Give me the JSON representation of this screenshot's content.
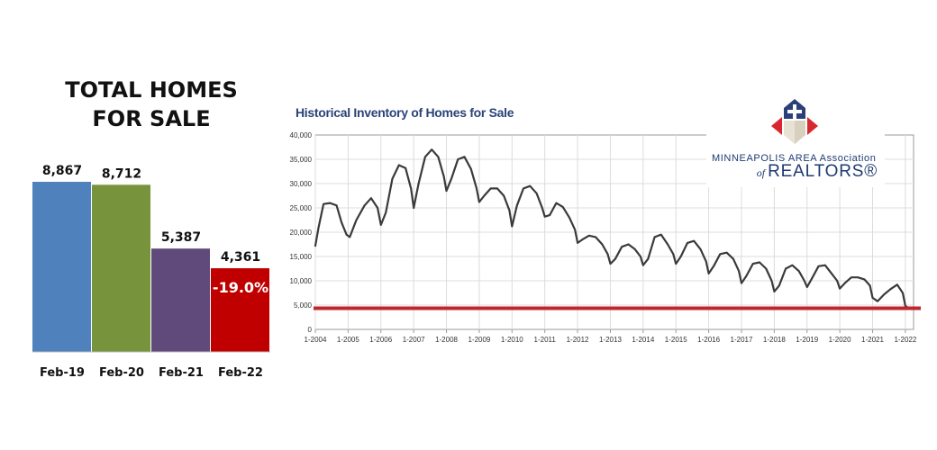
{
  "bar_title_lines": [
    "TOTAL HOMES",
    "FOR SALE"
  ],
  "line_title": "Historical Inventory of Homes for Sale",
  "logo": {
    "line1": "MINNEAPOLIS AREA Association",
    "of": "of",
    "realtors": "REALTORS®"
  },
  "chart_data": [
    {
      "type": "bar",
      "title": "TOTAL HOMES FOR SALE",
      "categories": [
        "Feb-19",
        "Feb-20",
        "Feb-21",
        "Feb-22"
      ],
      "values": [
        8867,
        8712,
        5387,
        4361
      ],
      "value_labels": [
        "8,867",
        "8,712",
        "5,387",
        "4,361"
      ],
      "colors": [
        "#4f81bd",
        "#77933c",
        "#604a7b",
        "#c00000"
      ],
      "annotation": "-19.0%",
      "ylim": [
        0,
        9000
      ]
    },
    {
      "type": "line",
      "title": "Historical Inventory of Homes for Sale",
      "xlabel": "",
      "ylabel": "",
      "ylim": [
        0,
        40000
      ],
      "yticks": [
        0,
        5000,
        10000,
        15000,
        20000,
        25000,
        30000,
        35000,
        40000
      ],
      "ytick_labels": [
        "0",
        "5,000",
        "10,000",
        "15,000",
        "20,000",
        "25,000",
        "30,000",
        "35,000",
        "40,000"
      ],
      "xlim": [
        2004.0,
        2022.25
      ],
      "xticks": [
        2004,
        2005,
        2006,
        2007,
        2008,
        2009,
        2010,
        2011,
        2012,
        2013,
        2014,
        2015,
        2016,
        2017,
        2018,
        2019,
        2020,
        2021,
        2022
      ],
      "xtick_labels": [
        "1-2004",
        "1-2005",
        "1-2006",
        "1-2007",
        "1-2008",
        "1-2009",
        "1-2010",
        "1-2011",
        "1-2012",
        "1-2013",
        "1-2014",
        "1-2015",
        "1-2016",
        "1-2017",
        "1-2018",
        "1-2019",
        "1-2020",
        "1-2021",
        "1-2022"
      ],
      "grid": true,
      "line_color": "#3a3a3a",
      "reference_line": {
        "value": 4361,
        "color": "#c0272d"
      },
      "series": [
        {
          "x": [
            2004.0,
            2004.1,
            2004.25,
            2004.45,
            2004.65,
            2004.8,
            2004.95,
            2005.05,
            2005.25,
            2005.5,
            2005.7,
            2005.9,
            2006.0,
            2006.15,
            2006.35,
            2006.55,
            2006.75,
            2006.92,
            2007.0,
            2007.15,
            2007.35,
            2007.55,
            2007.75,
            2007.92,
            2008.0,
            2008.15,
            2008.35,
            2008.55,
            2008.75,
            2008.92,
            2009.0,
            2009.15,
            2009.35,
            2009.55,
            2009.75,
            2009.92,
            2010.0,
            2010.15,
            2010.35,
            2010.55,
            2010.75,
            2010.92,
            2011.0,
            2011.15,
            2011.35,
            2011.55,
            2011.75,
            2011.92,
            2012.0,
            2012.15,
            2012.35,
            2012.55,
            2012.75,
            2012.92,
            2013.0,
            2013.15,
            2013.35,
            2013.55,
            2013.75,
            2013.92,
            2014.0,
            2014.15,
            2014.35,
            2014.55,
            2014.75,
            2014.92,
            2015.0,
            2015.15,
            2015.35,
            2015.55,
            2015.75,
            2015.92,
            2016.0,
            2016.15,
            2016.35,
            2016.55,
            2016.75,
            2016.92,
            2017.0,
            2017.15,
            2017.35,
            2017.55,
            2017.75,
            2017.92,
            2018.0,
            2018.15,
            2018.35,
            2018.55,
            2018.75,
            2018.92,
            2019.0,
            2019.15,
            2019.35,
            2019.55,
            2019.75,
            2019.92,
            2020.0,
            2020.15,
            2020.35,
            2020.55,
            2020.75,
            2020.92,
            2021.0,
            2021.15,
            2021.35,
            2021.55,
            2021.75,
            2021.92,
            2022.0,
            2022.1
          ],
          "y": [
            17200,
            21000,
            25800,
            26000,
            25500,
            22000,
            19500,
            19000,
            22500,
            25500,
            27000,
            25000,
            21500,
            24000,
            31000,
            33800,
            33200,
            29000,
            25000,
            30000,
            35500,
            37000,
            35500,
            31500,
            28500,
            31000,
            35000,
            35500,
            33000,
            29000,
            26200,
            27500,
            29000,
            29000,
            27500,
            24500,
            21200,
            25500,
            29000,
            29500,
            28000,
            25000,
            23200,
            23500,
            26000,
            25200,
            23000,
            20500,
            17800,
            18500,
            19300,
            19000,
            17500,
            15500,
            13500,
            14500,
            17000,
            17500,
            16500,
            15000,
            13200,
            14500,
            19000,
            19500,
            17500,
            15500,
            13500,
            15000,
            17800,
            18200,
            16500,
            14000,
            11500,
            13000,
            15500,
            15800,
            14500,
            12000,
            9500,
            11000,
            13500,
            13800,
            12500,
            10000,
            7800,
            9000,
            12500,
            13200,
            12000,
            10000,
            8700,
            10500,
            13000,
            13200,
            11500,
            10000,
            8400,
            9500,
            10700,
            10700,
            10300,
            9000,
            6500,
            5800,
            7200,
            8300,
            9200,
            7500,
            4800,
            4400
          ]
        }
      ]
    }
  ]
}
